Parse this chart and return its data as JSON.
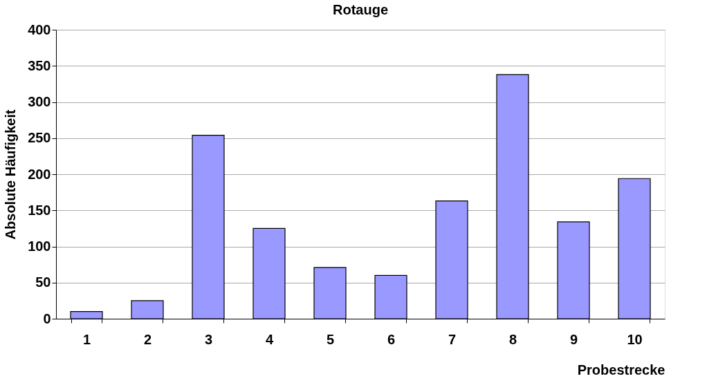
{
  "chart_data": {
    "type": "bar",
    "title": "Rotauge",
    "xlabel": "Probestrecke",
    "ylabel": "Absolute Häufigkeit",
    "categories": [
      "1",
      "2",
      "3",
      "4",
      "5",
      "6",
      "7",
      "8",
      "9",
      "10"
    ],
    "values": [
      10,
      25,
      254,
      125,
      71,
      60,
      163,
      338,
      134,
      194
    ],
    "color": "#9999ff",
    "ylim": [
      0,
      400
    ],
    "yticks": [
      0,
      50,
      100,
      150,
      200,
      250,
      300,
      350,
      400
    ],
    "grid": "y"
  }
}
